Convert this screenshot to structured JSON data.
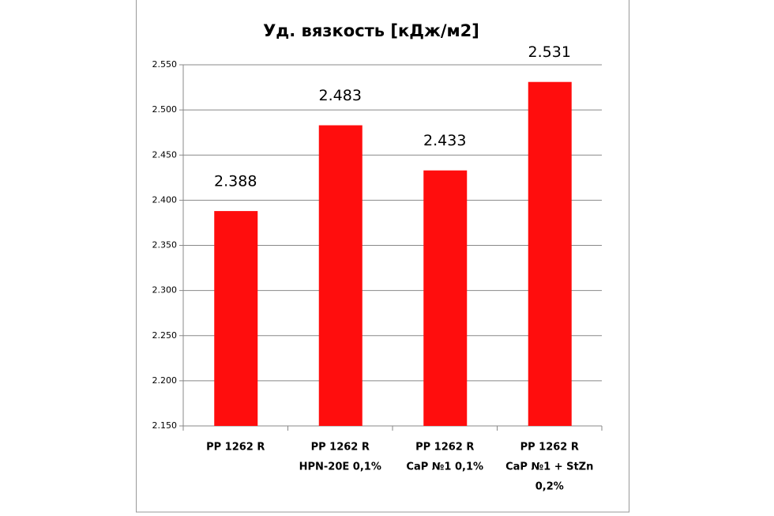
{
  "chart_data": {
    "type": "bar",
    "title": "Уд. вязкость [кДж/м2]",
    "categories": [
      [
        "PP 1262 R"
      ],
      [
        "PP 1262 R",
        "HPN-20E 0,1%"
      ],
      [
        "PP 1262 R",
        "CaP №1  0,1%"
      ],
      [
        "PP 1262 R",
        "CaP №1 + StZn",
        "0,2%"
      ]
    ],
    "values": [
      2.388,
      2.483,
      2.433,
      2.531
    ],
    "color": "#ff0d0d",
    "ylim": [
      2.15,
      2.55
    ],
    "yticks": [
      {
        "value": 2.15,
        "label": "2.150"
      },
      {
        "value": 2.2,
        "label": "2.200"
      },
      {
        "value": 2.25,
        "label": "2.250"
      },
      {
        "value": 2.3,
        "label": "2.300"
      },
      {
        "value": 2.35,
        "label": "2.350"
      },
      {
        "value": 2.4,
        "label": "2.400"
      },
      {
        "value": 2.45,
        "label": "2.450"
      },
      {
        "value": 2.5,
        "label": "2.500"
      },
      {
        "value": 2.55,
        "label": "2.550"
      }
    ],
    "grid": true
  }
}
